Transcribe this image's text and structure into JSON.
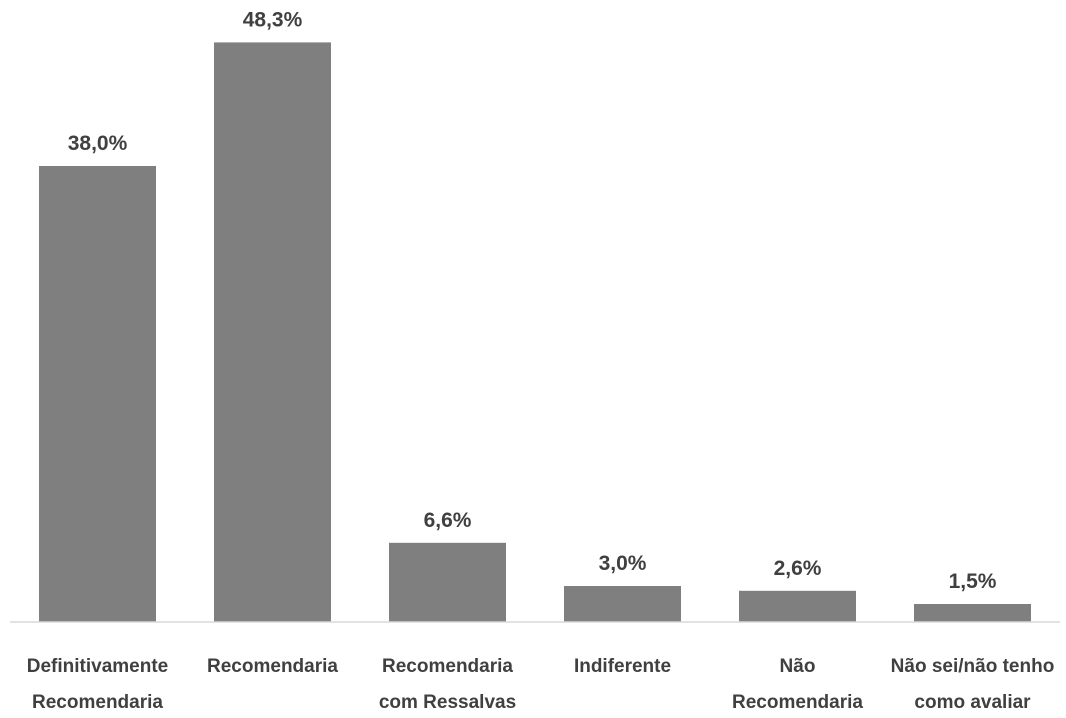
{
  "chart_data": {
    "type": "bar",
    "categories": [
      [
        "Definitivamente",
        "Recomendaria"
      ],
      [
        "Recomendaria"
      ],
      [
        "Recomendaria",
        "com Ressalvas"
      ],
      [
        "Indiferente"
      ],
      [
        "Não",
        "Recomendaria"
      ],
      [
        "Não sei/não tenho",
        "como avaliar"
      ]
    ],
    "values": [
      38.0,
      48.3,
      6.6,
      3.0,
      2.6,
      1.5
    ],
    "data_labels": [
      "38,0%",
      "48,3%",
      "6,6%",
      "3,0%",
      "2,6%",
      "1,5%"
    ],
    "ylim": [
      0,
      50
    ],
    "grid": false,
    "bar_color": "#7f7f7f",
    "axis_color": "#d9d9d9",
    "label_color": "#404040"
  }
}
